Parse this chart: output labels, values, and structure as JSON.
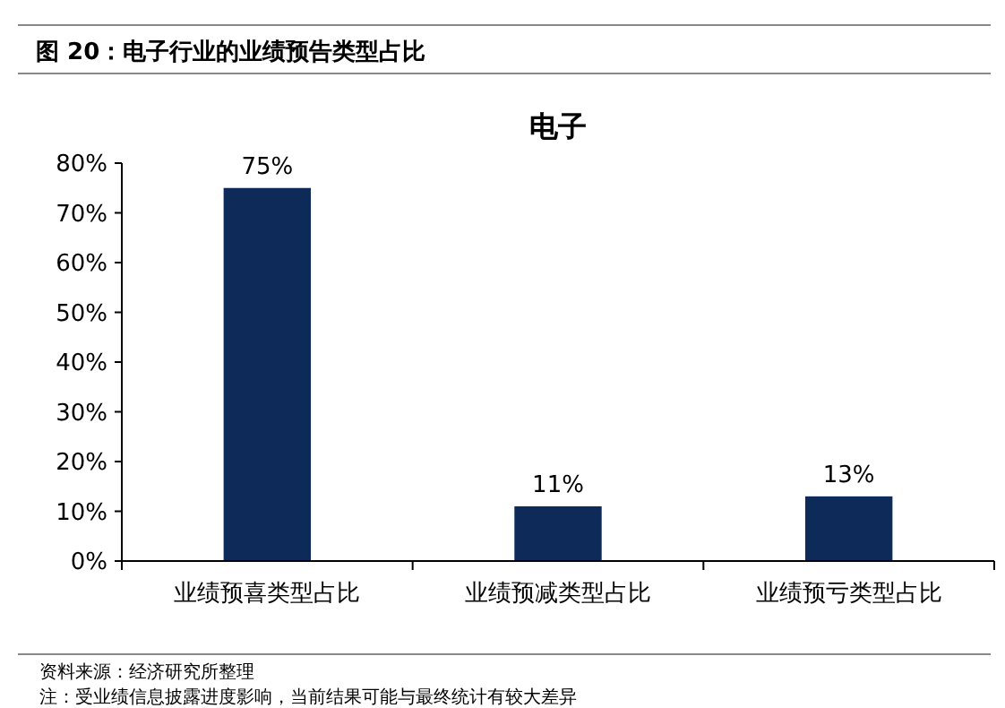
{
  "chart_data": {
    "type": "bar",
    "title": "电子",
    "subtitle": "图 20：电子行业的业绩预告类型占比",
    "categories": [
      "业绩预喜类型占比",
      "业绩预减类型占比",
      "业绩预亏类型占比"
    ],
    "values": [
      75,
      11,
      13
    ],
    "value_labels": [
      "75%",
      "11%",
      "13%"
    ],
    "color": "#0d2a59",
    "ylim": [
      0,
      80
    ],
    "yticks": [
      {
        "value": 0,
        "label": "0%"
      },
      {
        "value": 10,
        "label": "10%"
      },
      {
        "value": 20,
        "label": "20%"
      },
      {
        "value": 30,
        "label": "30%"
      },
      {
        "value": 40,
        "label": "40%"
      },
      {
        "value": 50,
        "label": "50%"
      },
      {
        "value": 60,
        "label": "60%"
      },
      {
        "value": 70,
        "label": "70%"
      },
      {
        "value": 80,
        "label": "80%"
      }
    ],
    "grid": false,
    "annotations": [
      "资料来源：经济研究所整理",
      "注：受业绩信息披露进度影响，当前结果可能与最终统计有较大差异"
    ]
  }
}
